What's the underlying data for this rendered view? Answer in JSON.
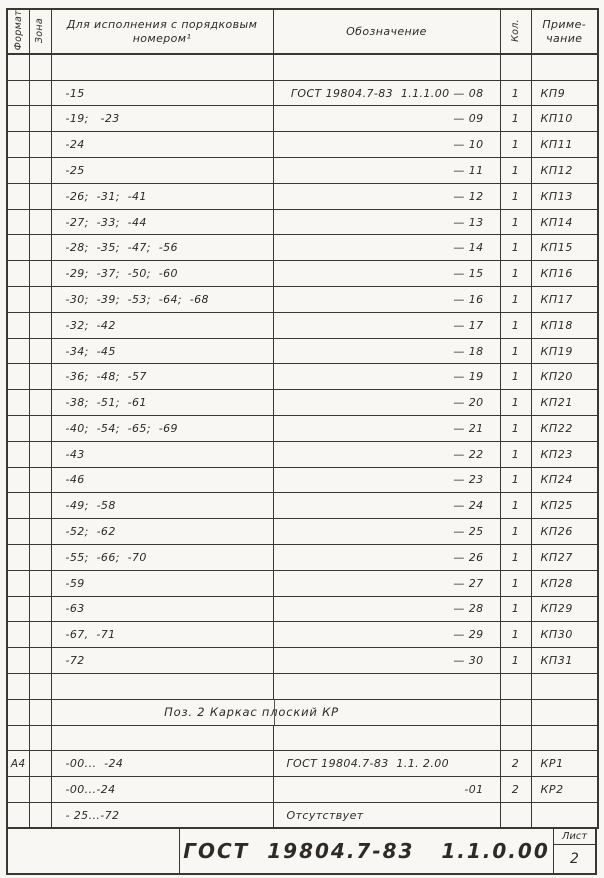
{
  "colors": {
    "ink": "#2e2b26",
    "paper": "#f8f7f3",
    "line": "#3b3831"
  },
  "table": {
    "header": {
      "format": "Формат",
      "zone": "Зона",
      "executions": "Для исполнения с порядковым номером¹",
      "designation": "Обозначение",
      "qty": "Кол.",
      "note": "Приме-\nчание"
    },
    "rows": [
      {
        "type": "empty"
      },
      {
        "exec": "-15",
        "designation": "ГОСТ 19804.7-83  1.1.1.00 — 08",
        "qty": "1",
        "note": "КП9"
      },
      {
        "exec": "-19;   -23",
        "designation": "— 09",
        "qty": "1",
        "note": "КП10"
      },
      {
        "exec": "-24",
        "designation": "— 10",
        "qty": "1",
        "note": "КП11"
      },
      {
        "exec": "-25",
        "designation": "— 11",
        "qty": "1",
        "note": "КП12"
      },
      {
        "exec": "-26;  -31;  -41",
        "designation": "— 12",
        "qty": "1",
        "note": "КП13"
      },
      {
        "exec": "-27;  -33;  -44",
        "designation": "— 13",
        "qty": "1",
        "note": "КП14"
      },
      {
        "exec": "-28;  -35;  -47;  -56",
        "designation": "— 14",
        "qty": "1",
        "note": "КП15"
      },
      {
        "exec": "-29;  -37;  -50;  -60",
        "designation": "— 15",
        "qty": "1",
        "note": "КП16"
      },
      {
        "exec": "-30;  -39;  -53;  -64;  -68",
        "designation": "— 16",
        "qty": "1",
        "note": "КП17"
      },
      {
        "exec": "-32;  -42",
        "designation": "— 17",
        "qty": "1",
        "note": "КП18"
      },
      {
        "exec": "-34;  -45",
        "designation": "— 18",
        "qty": "1",
        "note": "КП19"
      },
      {
        "exec": "-36;  -48;  -57",
        "designation": "— 19",
        "qty": "1",
        "note": "КП20"
      },
      {
        "exec": "-38;  -51;  -61",
        "designation": "— 20",
        "qty": "1",
        "note": "КП21"
      },
      {
        "exec": "-40;  -54;  -65;  -69",
        "designation": "— 21",
        "qty": "1",
        "note": "КП22"
      },
      {
        "exec": "-43",
        "designation": "— 22",
        "qty": "1",
        "note": "КП23"
      },
      {
        "exec": "-46",
        "designation": "— 23",
        "qty": "1",
        "note": "КП24"
      },
      {
        "exec": "-49;  -58",
        "designation": "— 24",
        "qty": "1",
        "note": "КП25"
      },
      {
        "exec": "-52;  -62",
        "designation": "— 25",
        "qty": "1",
        "note": "КП26"
      },
      {
        "exec": "-55;  -66;  -70",
        "designation": "— 26",
        "qty": "1",
        "note": "КП27"
      },
      {
        "exec": "-59",
        "designation": "— 27",
        "qty": "1",
        "note": "КП28"
      },
      {
        "exec": "-63",
        "designation": "— 28",
        "qty": "1",
        "note": "КП29"
      },
      {
        "exec": "-67,  -71",
        "designation": "— 29",
        "qty": "1",
        "note": "КП30"
      },
      {
        "exec": "-72",
        "designation": "— 30",
        "qty": "1",
        "note": "КП31"
      },
      {
        "type": "empty"
      },
      {
        "type": "section",
        "label": "Поз. 2   Каркас плоский  КР"
      },
      {
        "type": "empty"
      },
      {
        "format": "А4",
        "exec": "-00...  -24",
        "designation": "ГОСТ 19804.7-83  1.1. 2.00",
        "align": "left",
        "qty": "2",
        "note": "КР1"
      },
      {
        "exec": "-00...-24",
        "designation": "-01",
        "qty": "2",
        "note": "КР2"
      },
      {
        "exec": "- 25...-72",
        "designation": "Отсутствует",
        "align": "left",
        "qty": "",
        "note": ""
      }
    ]
  },
  "footer": {
    "doc_number": "ГОСТ  19804.7-83   1.1.0.00",
    "sheet_label": "Лист",
    "sheet_number": "2"
  }
}
